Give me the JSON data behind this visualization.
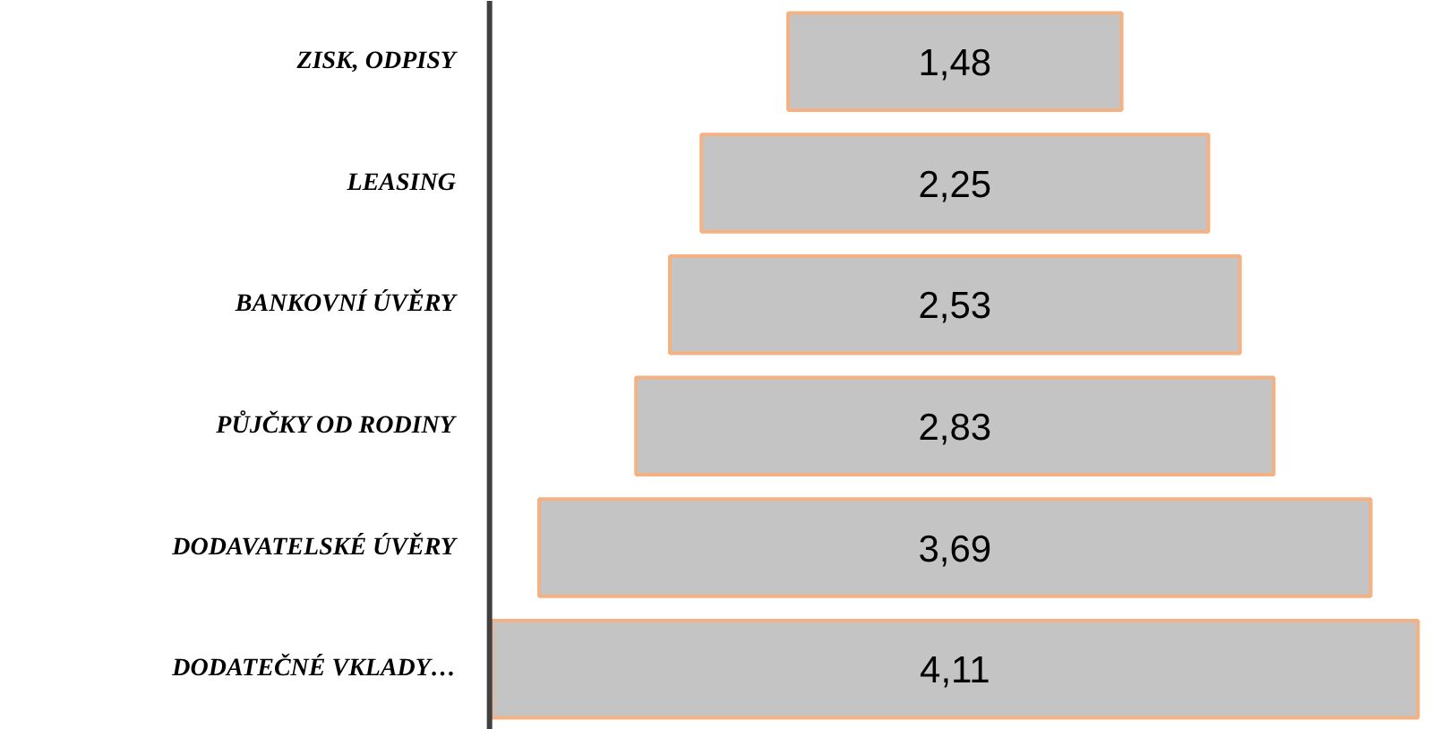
{
  "chart_data": {
    "type": "other",
    "categories": [
      "ZISK, ODPISY",
      "LEASING",
      "BANKOVNÍ ÚVĚRY",
      "PŮJČKY OD RODINY",
      "DODAVATELSKÉ ÚVĚRY",
      "DODATEČNÉ VKLADY…"
    ],
    "values": [
      1.48,
      2.25,
      2.53,
      2.83,
      3.69,
      4.11
    ],
    "value_labels": [
      "1,48",
      "2,25",
      "2,53",
      "2,83",
      "3,69",
      "4,11"
    ],
    "color": "#c4c4c4"
  }
}
